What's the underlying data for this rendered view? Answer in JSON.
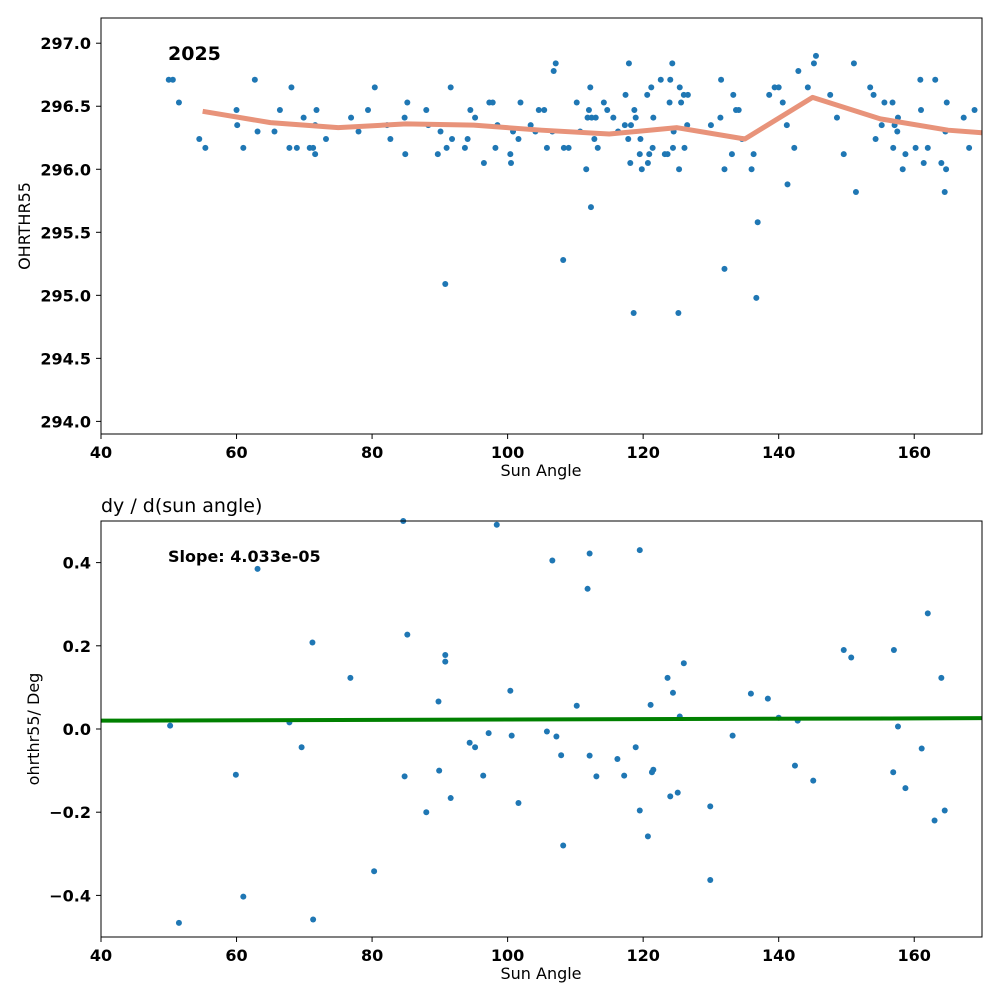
{
  "chart_data": [
    {
      "type": "scatter",
      "title": "",
      "annotation": "2025",
      "xlabel": "Sun Angle",
      "ylabel": "OHRTHR55",
      "xlim": [
        40,
        170
      ],
      "ylim": [
        293.9,
        297.2
      ],
      "xticks": [
        "40",
        "60",
        "80",
        "100",
        "120",
        "140",
        "160"
      ],
      "xtick_values": [
        40,
        60,
        80,
        100,
        120,
        140,
        160
      ],
      "yticks": [
        "294.0",
        "294.5",
        "295.0",
        "295.5",
        "296.0",
        "296.5",
        "297.0"
      ],
      "ytick_values": [
        294.0,
        294.5,
        295.0,
        295.5,
        296.0,
        296.5,
        297.0
      ],
      "grid": false,
      "point_color": "#1f77b4",
      "line_color": "#e8937a",
      "points": [
        [
          50.0,
          296.71
        ],
        [
          50.6,
          296.71
        ],
        [
          51.5,
          296.53
        ],
        [
          54.5,
          296.24
        ],
        [
          55.4,
          296.17
        ],
        [
          60.0,
          296.47
        ],
        [
          60.1,
          296.35
        ],
        [
          61.0,
          296.17
        ],
        [
          62.7,
          296.71
        ],
        [
          63.1,
          296.3
        ],
        [
          65.6,
          296.3
        ],
        [
          66.4,
          296.47
        ],
        [
          67.8,
          296.17
        ],
        [
          68.1,
          296.65
        ],
        [
          68.9,
          296.17
        ],
        [
          69.9,
          296.41
        ],
        [
          70.8,
          296.17
        ],
        [
          71.3,
          296.17
        ],
        [
          71.6,
          296.35
        ],
        [
          71.6,
          296.12
        ],
        [
          71.8,
          296.47
        ],
        [
          73.2,
          296.24
        ],
        [
          76.9,
          296.41
        ],
        [
          78.0,
          296.3
        ],
        [
          79.4,
          296.47
        ],
        [
          80.4,
          296.65
        ],
        [
          82.2,
          296.35
        ],
        [
          82.7,
          296.24
        ],
        [
          84.8,
          296.41
        ],
        [
          84.9,
          296.12
        ],
        [
          85.2,
          296.53
        ],
        [
          88.0,
          296.47
        ],
        [
          88.3,
          296.35
        ],
        [
          89.7,
          296.12
        ],
        [
          90.1,
          296.3
        ],
        [
          90.8,
          295.09
        ],
        [
          91.0,
          296.17
        ],
        [
          91.6,
          296.65
        ],
        [
          91.8,
          296.24
        ],
        [
          93.7,
          296.17
        ],
        [
          94.1,
          296.24
        ],
        [
          94.5,
          296.47
        ],
        [
          95.2,
          296.41
        ],
        [
          96.5,
          296.05
        ],
        [
          97.3,
          296.53
        ],
        [
          97.8,
          296.53
        ],
        [
          98.2,
          296.17
        ],
        [
          98.5,
          296.35
        ],
        [
          100.4,
          296.12
        ],
        [
          100.5,
          296.05
        ],
        [
          100.8,
          296.3
        ],
        [
          101.6,
          296.24
        ],
        [
          101.9,
          296.53
        ],
        [
          103.4,
          296.35
        ],
        [
          104.1,
          296.3
        ],
        [
          104.6,
          296.47
        ],
        [
          105.4,
          296.47
        ],
        [
          105.8,
          296.17
        ],
        [
          106.6,
          296.3
        ],
        [
          106.8,
          296.78
        ],
        [
          107.1,
          296.84
        ],
        [
          108.2,
          295.28
        ],
        [
          108.3,
          296.17
        ],
        [
          109.0,
          296.17
        ],
        [
          110.2,
          296.53
        ],
        [
          110.7,
          296.3
        ],
        [
          111.6,
          296.0
        ],
        [
          111.8,
          296.41
        ],
        [
          112.0,
          296.47
        ],
        [
          112.2,
          296.65
        ],
        [
          112.3,
          295.7
        ],
        [
          112.4,
          296.41
        ],
        [
          112.8,
          296.24
        ],
        [
          113.0,
          296.41
        ],
        [
          113.3,
          296.17
        ],
        [
          114.2,
          296.53
        ],
        [
          114.7,
          296.47
        ],
        [
          115.6,
          296.41
        ],
        [
          116.3,
          296.3
        ],
        [
          117.3,
          296.35
        ],
        [
          117.4,
          296.59
        ],
        [
          117.8,
          296.24
        ],
        [
          117.9,
          296.84
        ],
        [
          118.1,
          296.05
        ],
        [
          118.2,
          296.35
        ],
        [
          118.6,
          294.86
        ],
        [
          118.7,
          296.47
        ],
        [
          118.9,
          296.41
        ],
        [
          119.5,
          296.12
        ],
        [
          119.6,
          296.24
        ],
        [
          119.8,
          296.0
        ],
        [
          120.6,
          296.59
        ],
        [
          120.7,
          296.05
        ],
        [
          120.9,
          296.12
        ],
        [
          121.2,
          296.65
        ],
        [
          121.4,
          296.17
        ],
        [
          121.5,
          296.41
        ],
        [
          122.6,
          296.71
        ],
        [
          123.2,
          296.12
        ],
        [
          123.6,
          296.12
        ],
        [
          123.9,
          296.53
        ],
        [
          124.0,
          296.71
        ],
        [
          124.3,
          296.84
        ],
        [
          124.4,
          296.17
        ],
        [
          124.5,
          296.3
        ],
        [
          125.2,
          294.86
        ],
        [
          125.3,
          296.0
        ],
        [
          125.4,
          296.65
        ],
        [
          125.6,
          296.53
        ],
        [
          126.0,
          296.59
        ],
        [
          126.1,
          296.17
        ],
        [
          126.5,
          296.35
        ],
        [
          126.6,
          296.59
        ],
        [
          130.0,
          296.35
        ],
        [
          131.4,
          296.41
        ],
        [
          131.5,
          296.71
        ],
        [
          132.0,
          295.21
        ],
        [
          132.0,
          296.0
        ],
        [
          133.1,
          296.12
        ],
        [
          133.3,
          296.59
        ],
        [
          133.7,
          296.47
        ],
        [
          134.1,
          296.47
        ],
        [
          134.6,
          296.24
        ],
        [
          136.0,
          296.0
        ],
        [
          136.3,
          296.12
        ],
        [
          136.7,
          294.98
        ],
        [
          136.9,
          295.58
        ],
        [
          138.6,
          296.59
        ],
        [
          139.4,
          296.65
        ],
        [
          140.0,
          296.65
        ],
        [
          140.6,
          296.53
        ],
        [
          141.2,
          296.35
        ],
        [
          141.3,
          295.88
        ],
        [
          142.3,
          296.17
        ],
        [
          142.9,
          296.78
        ],
        [
          144.3,
          296.65
        ],
        [
          145.2,
          296.84
        ],
        [
          145.5,
          296.9
        ],
        [
          147.6,
          296.59
        ],
        [
          148.6,
          296.41
        ],
        [
          149.6,
          296.12
        ],
        [
          151.1,
          296.84
        ],
        [
          151.4,
          295.82
        ],
        [
          153.5,
          296.65
        ],
        [
          154.0,
          296.59
        ],
        [
          154.3,
          296.24
        ],
        [
          155.2,
          296.35
        ],
        [
          155.6,
          296.53
        ],
        [
          156.8,
          296.53
        ],
        [
          156.9,
          296.17
        ],
        [
          157.1,
          296.35
        ],
        [
          157.5,
          296.3
        ],
        [
          157.6,
          296.41
        ],
        [
          158.3,
          296.0
        ],
        [
          158.7,
          296.12
        ],
        [
          160.2,
          296.17
        ],
        [
          160.9,
          296.71
        ],
        [
          161.0,
          296.47
        ],
        [
          161.4,
          296.05
        ],
        [
          162.0,
          296.17
        ],
        [
          163.1,
          296.71
        ],
        [
          164.0,
          296.05
        ],
        [
          164.5,
          295.82
        ],
        [
          164.6,
          296.3
        ],
        [
          164.7,
          296.0
        ],
        [
          164.8,
          296.53
        ],
        [
          167.3,
          296.41
        ],
        [
          168.1,
          296.17
        ],
        [
          168.9,
          296.47
        ]
      ],
      "trend_line": [
        [
          55,
          296.46
        ],
        [
          65,
          296.37
        ],
        [
          75,
          296.33
        ],
        [
          85,
          296.36
        ],
        [
          95,
          296.35
        ],
        [
          105,
          296.31
        ],
        [
          115,
          296.28
        ],
        [
          125,
          296.33
        ],
        [
          135,
          296.24
        ],
        [
          145,
          296.57
        ],
        [
          155,
          296.4
        ],
        [
          165,
          296.31
        ],
        [
          170,
          296.29
        ]
      ]
    },
    {
      "type": "scatter",
      "title": "dy / d(sun angle)",
      "annotation": "Slope: 4.033e-05",
      "xlabel": "Sun Angle",
      "ylabel": "ohrthr55/ Deg",
      "xlim": [
        40,
        170
      ],
      "ylim": [
        -0.5,
        0.5
      ],
      "xticks": [
        "40",
        "60",
        "80",
        "100",
        "120",
        "140",
        "160"
      ],
      "xtick_values": [
        40,
        60,
        80,
        100,
        120,
        140,
        160
      ],
      "yticks": [
        "−0.4",
        "−0.2",
        "0.0",
        "0.2",
        "0.4"
      ],
      "ytick_values": [
        -0.4,
        -0.2,
        0.0,
        0.2,
        0.4
      ],
      "grid": false,
      "point_color": "#1f77b4",
      "line_color": "#008000",
      "points": [
        [
          50.2,
          0.008
        ],
        [
          51.5,
          -0.466
        ],
        [
          59.9,
          -0.11
        ],
        [
          61.0,
          -0.403
        ],
        [
          63.1,
          0.385
        ],
        [
          67.8,
          0.016
        ],
        [
          69.6,
          -0.044
        ],
        [
          71.2,
          0.208
        ],
        [
          71.3,
          -0.458
        ],
        [
          76.8,
          0.123
        ],
        [
          80.3,
          -0.342
        ],
        [
          84.6,
          0.5
        ],
        [
          84.8,
          -0.114
        ],
        [
          85.2,
          0.227
        ],
        [
          88.0,
          -0.2
        ],
        [
          89.8,
          0.066
        ],
        [
          89.9,
          -0.1
        ],
        [
          90.8,
          0.178
        ],
        [
          90.8,
          0.162
        ],
        [
          91.6,
          -0.166
        ],
        [
          94.4,
          -0.033
        ],
        [
          95.2,
          -0.044
        ],
        [
          96.4,
          -0.112
        ],
        [
          97.2,
          -0.01
        ],
        [
          98.4,
          0.491
        ],
        [
          100.4,
          0.092
        ],
        [
          100.6,
          -0.016
        ],
        [
          101.6,
          -0.178
        ],
        [
          105.8,
          -0.006
        ],
        [
          106.6,
          0.405
        ],
        [
          107.2,
          -0.018
        ],
        [
          107.9,
          -0.063
        ],
        [
          108.2,
          -0.28
        ],
        [
          110.2,
          0.056
        ],
        [
          111.8,
          0.337
        ],
        [
          112.1,
          0.422
        ],
        [
          112.1,
          -0.064
        ],
        [
          113.1,
          -0.114
        ],
        [
          116.2,
          -0.072
        ],
        [
          117.2,
          -0.112
        ],
        [
          118.9,
          -0.044
        ],
        [
          119.5,
          0.43
        ],
        [
          119.5,
          -0.196
        ],
        [
          120.7,
          -0.258
        ],
        [
          121.1,
          0.058
        ],
        [
          121.3,
          -0.104
        ],
        [
          121.5,
          -0.098
        ],
        [
          123.6,
          0.123
        ],
        [
          124.0,
          -0.162
        ],
        [
          124.4,
          0.087
        ],
        [
          125.1,
          -0.153
        ],
        [
          125.4,
          0.03
        ],
        [
          126.0,
          0.158
        ],
        [
          129.9,
          -0.186
        ],
        [
          129.9,
          -0.363
        ],
        [
          133.2,
          -0.016
        ],
        [
          135.9,
          0.085
        ],
        [
          138.4,
          0.073
        ],
        [
          140.0,
          0.027
        ],
        [
          142.4,
          -0.088
        ],
        [
          142.8,
          0.02
        ],
        [
          145.1,
          -0.124
        ],
        [
          149.6,
          0.19
        ],
        [
          150.7,
          0.172
        ],
        [
          157.0,
          0.19
        ],
        [
          156.9,
          -0.104
        ],
        [
          157.6,
          0.006
        ],
        [
          158.7,
          -0.142
        ],
        [
          161.1,
          -0.047
        ],
        [
          162.0,
          0.278
        ],
        [
          163.0,
          -0.22
        ],
        [
          164.0,
          0.123
        ],
        [
          164.5,
          -0.196
        ]
      ],
      "fit_line": [
        [
          40,
          0.02
        ],
        [
          170,
          0.026
        ]
      ]
    }
  ]
}
